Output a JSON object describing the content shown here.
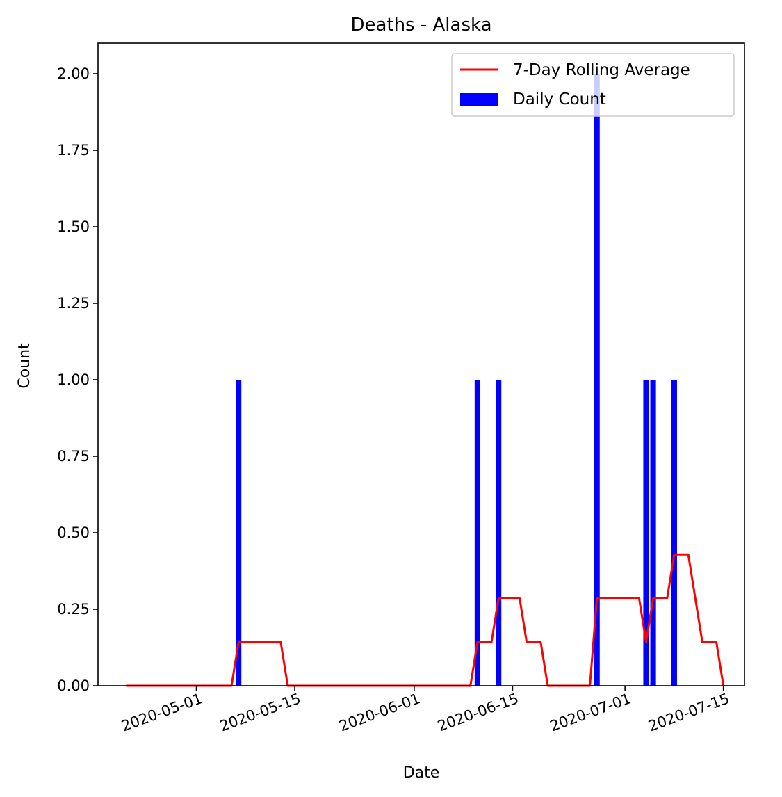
{
  "chart_data": {
    "type": "bar",
    "title": "Deaths - Alaska",
    "xlabel": "Date",
    "ylabel": "Count",
    "xlim": [
      "2020-04-17",
      "2020-07-18"
    ],
    "ylim": [
      0,
      2.1
    ],
    "x_ticks": [
      "2020-05-01",
      "2020-05-15",
      "2020-06-01",
      "2020-06-15",
      "2020-07-01",
      "2020-07-15"
    ],
    "y_ticks": [
      "0.00",
      "0.25",
      "0.50",
      "0.75",
      "1.00",
      "1.25",
      "1.50",
      "1.75",
      "2.00"
    ],
    "grid": false,
    "legend_position": "top-right",
    "series": [
      {
        "name": "Daily Count",
        "kind": "bar",
        "color": "#0000ff",
        "points": [
          {
            "x": "2020-05-07",
            "y": 1
          },
          {
            "x": "2020-06-10",
            "y": 1
          },
          {
            "x": "2020-06-13",
            "y": 1
          },
          {
            "x": "2020-06-27",
            "y": 2
          },
          {
            "x": "2020-07-04",
            "y": 1
          },
          {
            "x": "2020-07-05",
            "y": 1
          },
          {
            "x": "2020-07-08",
            "y": 1
          }
        ]
      },
      {
        "name": "7-Day Rolling Average",
        "kind": "line",
        "color": "#ff0000",
        "points": [
          {
            "x": "2020-04-21",
            "y": 0
          },
          {
            "x": "2020-05-06",
            "y": 0
          },
          {
            "x": "2020-05-07",
            "y": 0.143
          },
          {
            "x": "2020-05-13",
            "y": 0.143
          },
          {
            "x": "2020-05-14",
            "y": 0
          },
          {
            "x": "2020-06-09",
            "y": 0
          },
          {
            "x": "2020-06-10",
            "y": 0.143
          },
          {
            "x": "2020-06-12",
            "y": 0.143
          },
          {
            "x": "2020-06-13",
            "y": 0.286
          },
          {
            "x": "2020-06-16",
            "y": 0.286
          },
          {
            "x": "2020-06-17",
            "y": 0.143
          },
          {
            "x": "2020-06-19",
            "y": 0.143
          },
          {
            "x": "2020-06-20",
            "y": 0
          },
          {
            "x": "2020-06-26",
            "y": 0
          },
          {
            "x": "2020-06-27",
            "y": 0.286
          },
          {
            "x": "2020-07-03",
            "y": 0.286
          },
          {
            "x": "2020-07-04",
            "y": 0.143
          },
          {
            "x": "2020-07-05",
            "y": 0.286
          },
          {
            "x": "2020-07-07",
            "y": 0.286
          },
          {
            "x": "2020-07-08",
            "y": 0.429
          },
          {
            "x": "2020-07-10",
            "y": 0.429
          },
          {
            "x": "2020-07-12",
            "y": 0.143
          },
          {
            "x": "2020-07-14",
            "y": 0.143
          },
          {
            "x": "2020-07-15",
            "y": 0
          }
        ]
      }
    ]
  }
}
